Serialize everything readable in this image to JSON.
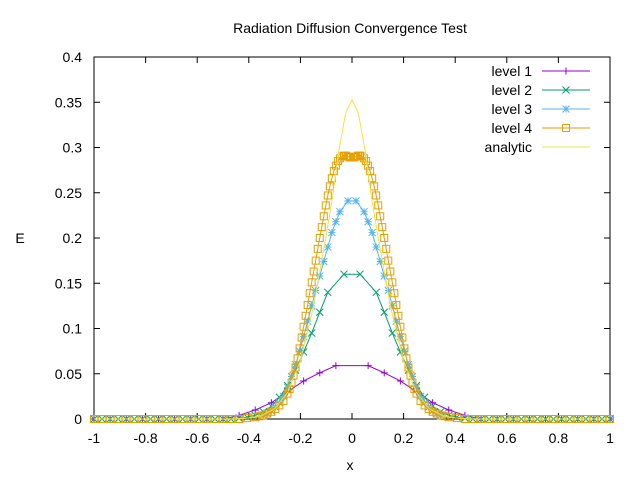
{
  "chart_data": {
    "type": "line",
    "title": "Radiation Diffusion Convergence Test",
    "xlabel": "x",
    "ylabel": "E",
    "xlim": [
      -1,
      1
    ],
    "ylim": [
      0,
      0.4
    ],
    "xticks": [
      -1,
      -0.8,
      -0.6,
      -0.4,
      -0.2,
      0,
      0.2,
      0.4,
      0.6,
      0.8,
      1
    ],
    "xtick_labels": [
      "-1",
      "-0.8",
      "-0.6",
      "-0.4",
      "-0.2",
      "0",
      "0.2",
      "0.4",
      "0.6",
      "0.8",
      "1"
    ],
    "yticks": [
      0,
      0.05,
      0.1,
      0.15,
      0.2,
      0.25,
      0.3,
      0.35,
      0.4
    ],
    "ytick_labels": [
      "0",
      "0.05",
      "0.1",
      "0.15",
      "0.2",
      "0.25",
      "0.3",
      "0.35",
      "0.4"
    ],
    "grid": false,
    "legend_position": "top-right",
    "series": [
      {
        "name": "level 1",
        "color": "#9400d3",
        "marker": "plus",
        "x": [
          -1,
          -0.9375,
          -0.875,
          -0.8125,
          -0.75,
          -0.6875,
          -0.625,
          -0.5625,
          -0.5,
          -0.4375,
          -0.375,
          -0.3125,
          -0.25,
          -0.1875,
          -0.125,
          -0.0625,
          0.0625,
          0.125,
          0.1875,
          0.25,
          0.3125,
          0.375,
          0.4375,
          0.5,
          0.5625,
          0.625,
          0.6875,
          0.75,
          0.8125,
          0.875,
          0.9375,
          1
        ],
        "y": [
          0,
          0,
          0,
          0,
          0,
          0,
          0,
          0,
          0,
          0.004,
          0.01,
          0.018,
          0.03,
          0.042,
          0.051,
          0.059,
          0.059,
          0.051,
          0.042,
          0.03,
          0.018,
          0.01,
          0.004,
          0,
          0,
          0,
          0,
          0,
          0,
          0,
          0,
          0
        ]
      },
      {
        "name": "level 2",
        "color": "#009e73",
        "marker": "cross",
        "x": [
          -1,
          -0.96875,
          -0.9375,
          -0.90625,
          -0.875,
          -0.84375,
          -0.8125,
          -0.78125,
          -0.75,
          -0.71875,
          -0.6875,
          -0.65625,
          -0.625,
          -0.59375,
          -0.5625,
          -0.53125,
          -0.5,
          -0.46875,
          -0.4375,
          -0.40625,
          -0.375,
          -0.34375,
          -0.3125,
          -0.28125,
          -0.25,
          -0.21875,
          -0.1875,
          -0.15625,
          -0.125,
          -0.09375,
          -0.03125,
          0.03125,
          0.09375,
          0.125,
          0.15625,
          0.1875,
          0.21875,
          0.25,
          0.28125,
          0.3125,
          0.34375,
          0.375,
          0.40625,
          0.4375,
          0.46875,
          0.5,
          0.53125,
          0.5625,
          0.59375,
          0.625,
          0.65625,
          0.6875,
          0.71875,
          0.75,
          0.78125,
          0.8125,
          0.84375,
          0.875,
          0.90625,
          0.9375,
          0.96875,
          1
        ],
        "y": [
          0,
          0,
          0,
          0,
          0,
          0,
          0,
          0,
          0,
          0,
          0,
          0,
          0,
          0,
          0,
          0,
          0,
          0,
          0.001,
          0.002,
          0.004,
          0.008,
          0.014,
          0.024,
          0.037,
          0.054,
          0.074,
          0.095,
          0.118,
          0.14,
          0.16,
          0.16,
          0.14,
          0.118,
          0.095,
          0.074,
          0.054,
          0.037,
          0.024,
          0.014,
          0.008,
          0.004,
          0.002,
          0.001,
          0,
          0,
          0,
          0,
          0,
          0,
          0,
          0,
          0,
          0,
          0,
          0,
          0,
          0,
          0,
          0,
          0,
          0
        ]
      },
      {
        "name": "level 3",
        "color": "#56b4e9",
        "marker": "star",
        "x": [
          -0.34375,
          -0.328125,
          -0.3125,
          -0.296875,
          -0.28125,
          -0.265625,
          -0.25,
          -0.234375,
          -0.21875,
          -0.203125,
          -0.1875,
          -0.171875,
          -0.15625,
          -0.140625,
          -0.125,
          -0.109375,
          -0.09375,
          -0.078125,
          -0.0625,
          -0.046875,
          -0.015625,
          0.015625,
          0.046875,
          0.0625,
          0.078125,
          0.09375,
          0.109375,
          0.125,
          0.140625,
          0.15625,
          0.171875,
          0.1875,
          0.203125,
          0.21875,
          0.234375,
          0.25,
          0.265625,
          0.28125,
          0.296875,
          0.3125,
          0.328125,
          0.34375
        ],
        "y": [
          0.004,
          0.006,
          0.009,
          0.013,
          0.018,
          0.025,
          0.035,
          0.047,
          0.06,
          0.075,
          0.091,
          0.108,
          0.125,
          0.142,
          0.158,
          0.174,
          0.19,
          0.206,
          0.218,
          0.229,
          0.241,
          0.241,
          0.229,
          0.218,
          0.206,
          0.19,
          0.174,
          0.158,
          0.142,
          0.125,
          0.108,
          0.091,
          0.075,
          0.06,
          0.047,
          0.035,
          0.025,
          0.018,
          0.013,
          0.009,
          0.006,
          0.004
        ]
      },
      {
        "name": "level 4",
        "color": "#e69f00",
        "marker": "square",
        "x": [
          -1,
          -0.96875,
          -0.9375,
          -0.90625,
          -0.875,
          -0.84375,
          -0.8125,
          -0.78125,
          -0.75,
          -0.71875,
          -0.6875,
          -0.65625,
          -0.625,
          -0.59375,
          -0.5625,
          -0.53125,
          -0.5,
          -0.46875,
          -0.4375,
          -0.40625,
          -0.375,
          -0.359375,
          -0.34375,
          -0.328125,
          -0.3125,
          -0.296875,
          -0.28125,
          -0.265625,
          -0.25,
          -0.242188,
          -0.234375,
          -0.226563,
          -0.21875,
          -0.210938,
          -0.203125,
          -0.195313,
          -0.1875,
          -0.179688,
          -0.171875,
          -0.164063,
          -0.15625,
          -0.148438,
          -0.140625,
          -0.132813,
          -0.125,
          -0.117188,
          -0.109375,
          -0.101563,
          -0.09375,
          -0.085938,
          -0.078125,
          -0.070313,
          -0.0625,
          -0.054688,
          -0.046875,
          -0.039063,
          -0.03125,
          -0.023438,
          -0.015625,
          -0.007813,
          0.007813,
          0.015625,
          0.023438,
          0.03125,
          0.039063,
          0.046875,
          0.054688,
          0.0625,
          0.070313,
          0.078125,
          0.085938,
          0.09375,
          0.101563,
          0.109375,
          0.117188,
          0.125,
          0.132813,
          0.140625,
          0.148438,
          0.15625,
          0.164063,
          0.171875,
          0.179688,
          0.1875,
          0.195313,
          0.203125,
          0.210938,
          0.21875,
          0.226563,
          0.234375,
          0.242188,
          0.25,
          0.265625,
          0.28125,
          0.296875,
          0.3125,
          0.328125,
          0.34375,
          0.359375,
          0.375,
          0.40625,
          0.4375,
          0.46875,
          0.5,
          0.53125,
          0.5625,
          0.59375,
          0.625,
          0.65625,
          0.6875,
          0.71875,
          0.75,
          0.78125,
          0.8125,
          0.84375,
          0.875,
          0.90625,
          0.9375,
          0.96875,
          1
        ],
        "y": [
          0,
          0,
          0,
          0,
          0,
          0,
          0,
          0,
          0,
          0,
          0,
          0,
          0,
          0,
          0,
          0,
          0,
          0,
          0,
          0.001,
          0.002,
          0.003,
          0.004,
          0.006,
          0.008,
          0.011,
          0.015,
          0.02,
          0.028,
          0.033,
          0.04,
          0.048,
          0.057,
          0.067,
          0.078,
          0.09,
          0.102,
          0.114,
          0.126,
          0.139,
          0.151,
          0.163,
          0.175,
          0.188,
          0.2,
          0.212,
          0.224,
          0.236,
          0.247,
          0.257,
          0.266,
          0.274,
          0.28,
          0.285,
          0.288,
          0.29,
          0.291,
          0.291,
          0.29,
          0.289,
          0.289,
          0.29,
          0.291,
          0.291,
          0.29,
          0.288,
          0.285,
          0.28,
          0.274,
          0.266,
          0.257,
          0.247,
          0.236,
          0.224,
          0.212,
          0.2,
          0.188,
          0.175,
          0.163,
          0.151,
          0.139,
          0.126,
          0.114,
          0.102,
          0.09,
          0.078,
          0.067,
          0.057,
          0.048,
          0.04,
          0.033,
          0.028,
          0.02,
          0.015,
          0.011,
          0.008,
          0.006,
          0.004,
          0.003,
          0.002,
          0.001,
          0,
          0,
          0,
          0,
          0,
          0,
          0,
          0,
          0,
          0,
          0,
          0,
          0,
          0,
          0,
          0,
          0,
          0,
          0
        ]
      },
      {
        "name": "analytic",
        "color": "#f0e442",
        "marker": "none",
        "x": [
          -1,
          -0.6,
          -0.5,
          -0.45,
          -0.4,
          -0.35,
          -0.3,
          -0.25,
          -0.2,
          -0.15,
          -0.1,
          -0.075,
          -0.05,
          -0.025,
          0,
          0.025,
          0.05,
          0.075,
          0.1,
          0.15,
          0.2,
          0.25,
          0.3,
          0.35,
          0.4,
          0.45,
          0.5,
          0.6,
          1
        ],
        "y": [
          0,
          0,
          0,
          0.0003,
          0.0011,
          0.0038,
          0.0113,
          0.0291,
          0.0645,
          0.1233,
          0.2026,
          0.2462,
          0.2975,
          0.3375,
          0.353,
          0.3375,
          0.2975,
          0.2462,
          0.2026,
          0.1233,
          0.0645,
          0.0291,
          0.0113,
          0.0038,
          0.0011,
          0.0003,
          0,
          0,
          0
        ]
      }
    ]
  }
}
